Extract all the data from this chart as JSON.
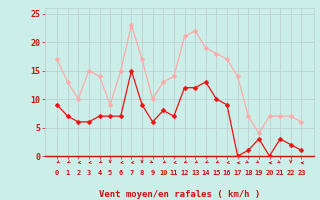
{
  "x": [
    0,
    1,
    2,
    3,
    4,
    5,
    6,
    7,
    8,
    9,
    10,
    11,
    12,
    13,
    14,
    15,
    16,
    17,
    18,
    19,
    20,
    21,
    22,
    23
  ],
  "y_mean": [
    9,
    7,
    6,
    6,
    7,
    7,
    7,
    15,
    9,
    6,
    8,
    7,
    12,
    12,
    13,
    10,
    9,
    0,
    1,
    3,
    0,
    3,
    2,
    1
  ],
  "y_gust": [
    17,
    13,
    10,
    15,
    14,
    9,
    15,
    23,
    17,
    10,
    13,
    14,
    21,
    22,
    19,
    18,
    17,
    14,
    7,
    4,
    7,
    7,
    7,
    6
  ],
  "xlabel": "Vent moyen/en rafales ( km/h )",
  "ylim": [
    0,
    26
  ],
  "yticks": [
    0,
    5,
    10,
    15,
    20,
    25
  ],
  "xticks": [
    0,
    1,
    2,
    3,
    4,
    5,
    6,
    7,
    8,
    9,
    10,
    11,
    12,
    13,
    14,
    15,
    16,
    17,
    18,
    19,
    20,
    21,
    22,
    23
  ],
  "color_mean": "#ee1111",
  "color_gust": "#ffaaaa",
  "bg_color": "#cceee8",
  "grid_color": "#bbcccc",
  "label_color": "#cc1111",
  "marker": "D",
  "markersize": 2.5,
  "linewidth": 0.9
}
